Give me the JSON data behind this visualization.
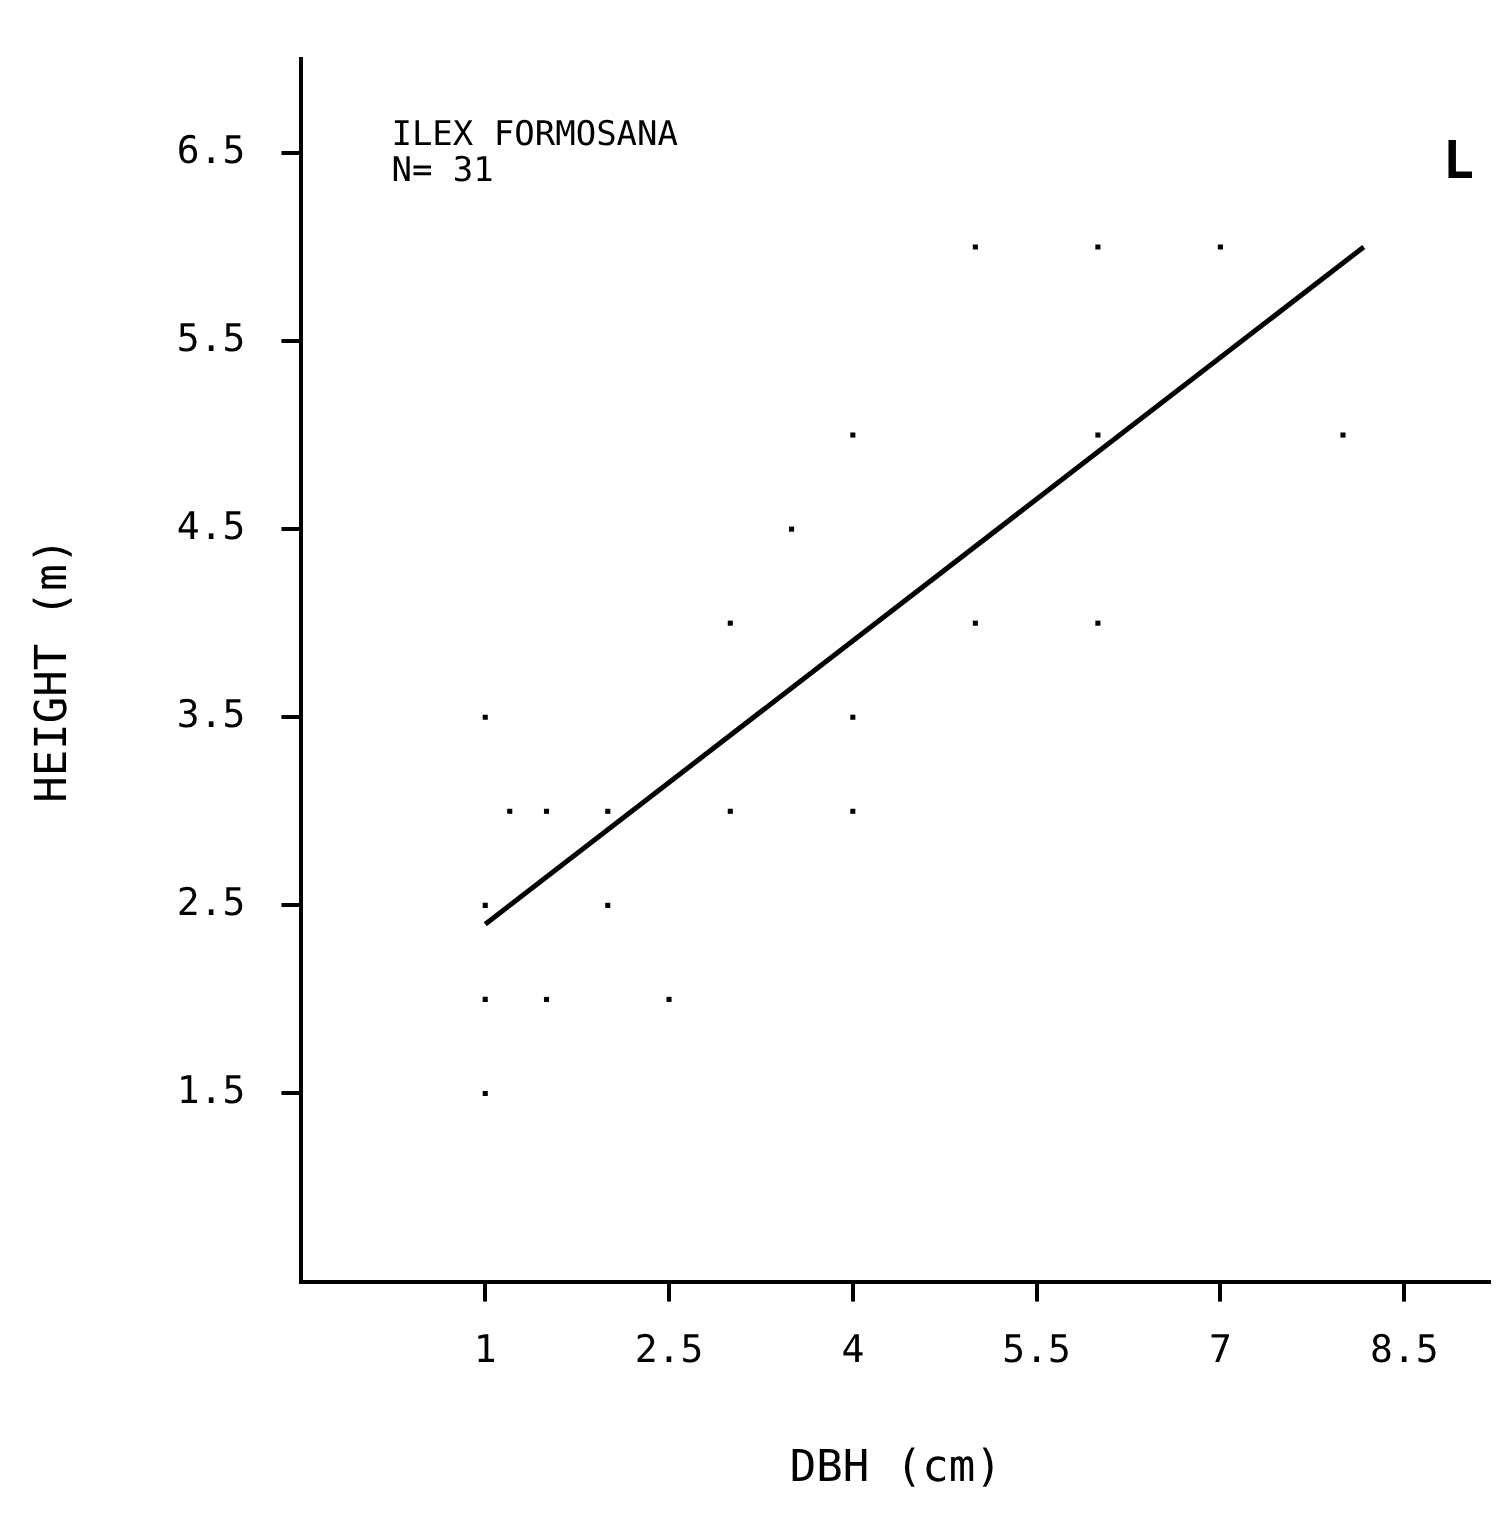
{
  "chart_data": {
    "type": "scatter",
    "xlabel": "DBH (cm)",
    "ylabel": "HEIGHT (m)",
    "annotations": [
      "ILEX FORMOSANA",
      "N= 31",
      "L"
    ],
    "xlim": [
      -0.5,
      9.2
    ],
    "xticks": [
      1,
      2.5,
      4,
      5.5,
      7,
      8.5
    ],
    "ylim": [
      0.5,
      7
    ],
    "yticks": [
      1.5,
      2.5,
      3.5,
      4.5,
      5.5,
      6.5
    ],
    "grid": false,
    "legend": false,
    "series": [
      {
        "type": "scatter",
        "marker": "square",
        "color": "#000000",
        "x": [
          1,
          3,
          3.5,
          4,
          4,
          5,
          6,
          7,
          6,
          8,
          5,
          6,
          1.2,
          1.5,
          2,
          3,
          4,
          1,
          2,
          1,
          1.5,
          2.5,
          1
        ],
        "values": [
          3.5,
          4,
          4.5,
          5,
          3.5,
          6,
          6,
          6,
          5,
          5,
          4,
          4,
          3,
          3,
          3,
          3,
          3,
          2.5,
          2.5,
          2,
          2,
          2,
          1.5
        ]
      },
      {
        "type": "line",
        "marker": "none",
        "color": "#000000",
        "x": [
          1,
          8.17
        ],
        "values": [
          2.4,
          6.0
        ]
      }
    ]
  }
}
